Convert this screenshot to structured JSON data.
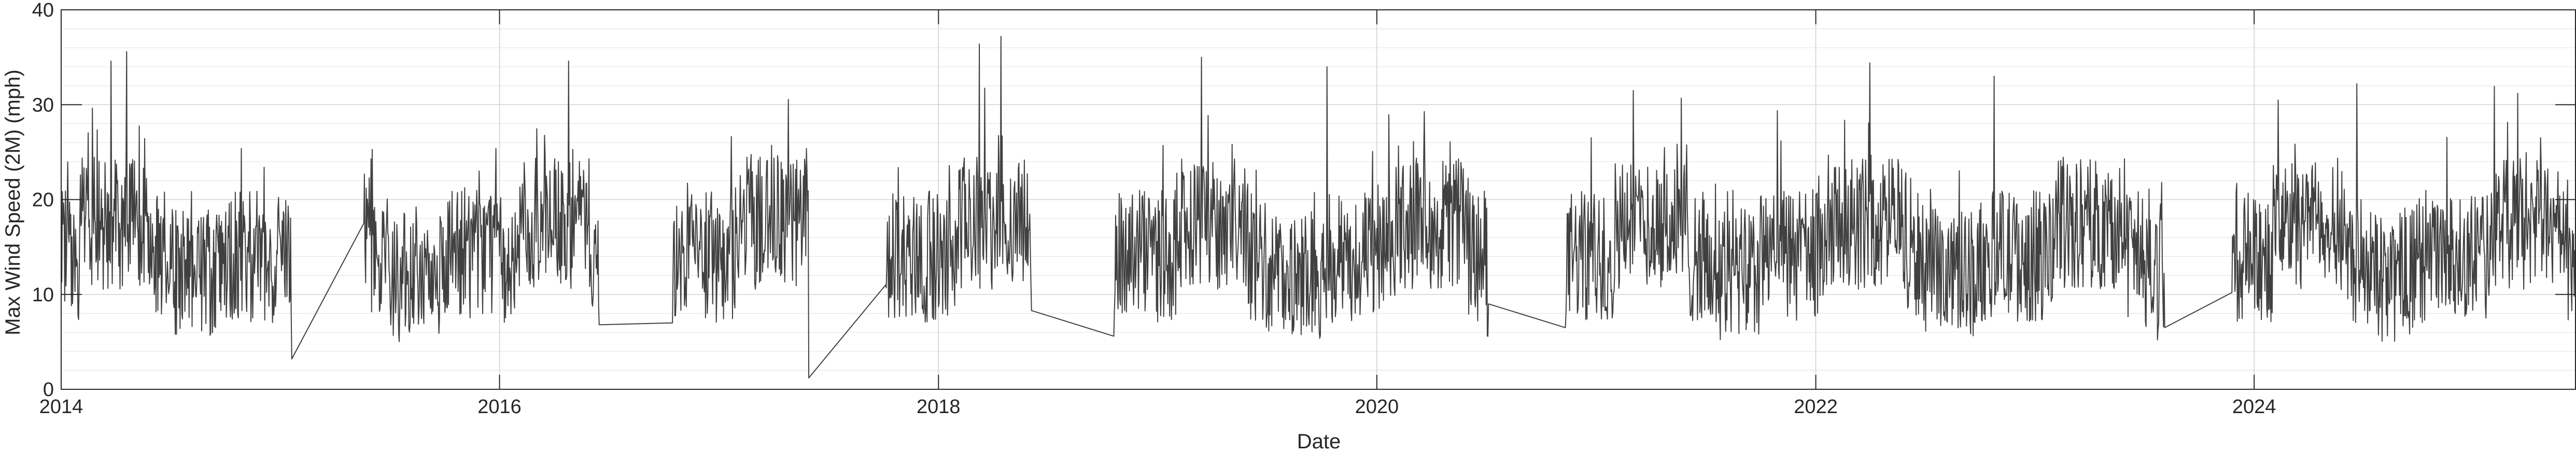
{
  "chart_data": {
    "type": "line",
    "title": "",
    "xlabel": "Date",
    "ylabel": "Max Wind Speed (2M) (mph)",
    "xlim": [
      "2014-01-01",
      "2025-06-20"
    ],
    "ylim": [
      0,
      40
    ],
    "x_ticks": [
      "2014",
      "2016",
      "2018",
      "2020",
      "2022",
      "2024"
    ],
    "y_ticks": [
      "0",
      "10",
      "20",
      "30",
      "40"
    ],
    "grid": true,
    "legend": "none",
    "line_color": "#404040",
    "observed_periods": [
      [
        "2014-01-01",
        "2015-01-20"
      ],
      [
        "2015-05-20",
        "2016-06-15"
      ],
      [
        "2016-10-15",
        "2017-05-30"
      ],
      [
        "2017-10-05",
        "2018-06-05"
      ],
      [
        "2018-10-20",
        "2020-07-05"
      ],
      [
        "2020-11-10",
        "2023-08-05"
      ],
      [
        "2023-11-25",
        "2025-06-20"
      ]
    ],
    "gap_endpoints": [
      {
        "from": [
          "2015-01-20",
          3.2
        ],
        "to": [
          "2015-05-20",
          17.5
        ]
      },
      {
        "from": [
          "2016-06-15",
          6.8
        ],
        "to": [
          "2016-10-15",
          7.0
        ]
      },
      {
        "from": [
          "2017-05-30",
          1.2
        ],
        "to": [
          "2017-10-05",
          11.0
        ]
      },
      {
        "from": [
          "2018-06-05",
          8.3
        ],
        "to": [
          "2018-10-20",
          5.6
        ]
      },
      {
        "from": [
          "2020-07-05",
          9.0
        ],
        "to": [
          "2020-11-10",
          6.5
        ]
      },
      {
        "from": [
          "2023-08-05",
          6.5
        ],
        "to": [
          "2023-11-25",
          10.2
        ]
      }
    ],
    "approximate_level_mph": {
      "typical_low": 7,
      "typical_mid": 14,
      "typical_high": 22
    },
    "peak_values": [
      [
        "2014-04-20",
        35.6
      ],
      [
        "2014-03-25",
        34.6
      ],
      [
        "2016-04-25",
        34.6
      ],
      [
        "2018-04-15",
        37.2
      ],
      [
        "2018-03-10",
        36.4
      ],
      [
        "2019-03-15",
        35.0
      ],
      [
        "2019-10-10",
        34.0
      ],
      [
        "2022-04-01",
        34.4
      ],
      [
        "2022-10-25",
        33.0
      ],
      [
        "2024-06-20",
        32.2
      ],
      [
        "2025-03-15",
        31.2
      ],
      [
        "2024-02-10",
        30.5
      ]
    ]
  }
}
